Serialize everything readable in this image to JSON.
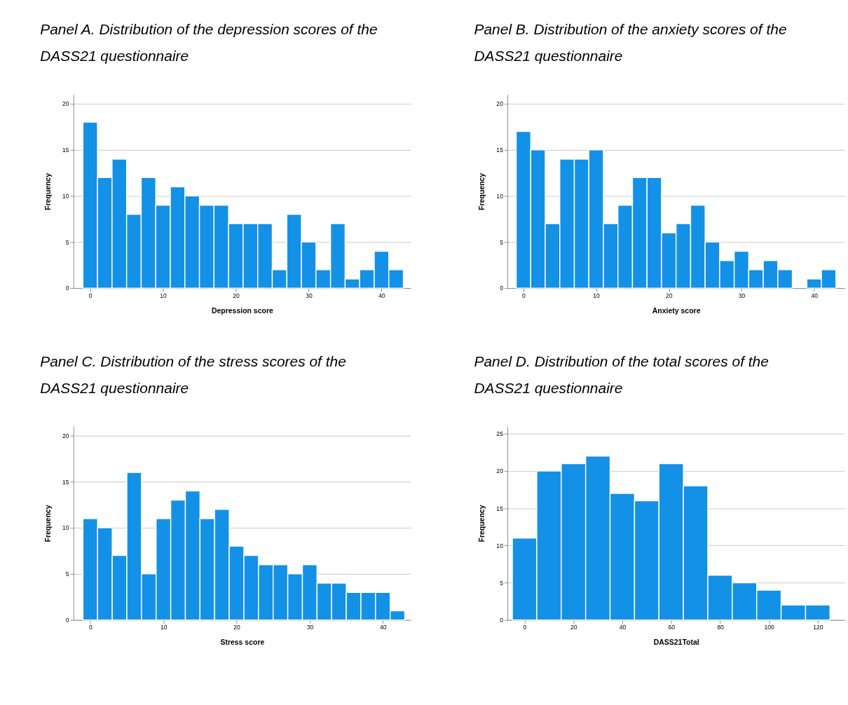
{
  "chart_data": [
    {
      "type": "histogram",
      "title": "Panel A. Distribution of the depression scores of the DASS21 questionnaire",
      "xlabel": "Depression score",
      "ylabel": "Frequency",
      "color": "#1391e6",
      "bins": [
        -1,
        1,
        3,
        5,
        7,
        9,
        11,
        13,
        15,
        17,
        19,
        21,
        23,
        25,
        27,
        29,
        31,
        33,
        35,
        37,
        39,
        41,
        43
      ],
      "values": [
        18,
        12,
        14,
        8,
        12,
        9,
        11,
        10,
        9,
        9,
        7,
        7,
        7,
        2,
        8,
        5,
        2,
        7,
        1,
        2,
        4,
        2
      ],
      "xlim": [
        -2.3,
        44
      ],
      "ylim": [
        0,
        21
      ],
      "xticks": [
        0,
        10,
        20,
        30,
        40
      ],
      "yticks": [
        0,
        5,
        10,
        15,
        20
      ],
      "grid": "y"
    },
    {
      "type": "histogram",
      "title": "Panel B. Distribution of the anxiety scores of the DASS21 questionnaire",
      "xlabel": "Anxiety score",
      "ylabel": "Frequency",
      "color": "#1391e6",
      "bins": [
        -1,
        1,
        3,
        5,
        7,
        9,
        11,
        13,
        15,
        17,
        19,
        21,
        23,
        25,
        27,
        29,
        31,
        33,
        35,
        37,
        39,
        41,
        43
      ],
      "values": [
        17,
        15,
        7,
        14,
        14,
        15,
        7,
        9,
        12,
        12,
        6,
        7,
        9,
        5,
        3,
        4,
        2,
        3,
        2,
        0,
        1,
        2
      ],
      "xlim": [
        -2.2,
        44.2
      ],
      "ylim": [
        0,
        21
      ],
      "xticks": [
        0,
        10,
        20,
        30,
        40
      ],
      "yticks": [
        0,
        5,
        10,
        15,
        20
      ],
      "grid": "y"
    },
    {
      "type": "histogram",
      "title": "Panel C. Distribution of the stress scores of the DASS21 questionnaire",
      "xlabel": "Stress score",
      "ylabel": "Frequency",
      "color": "#1391e6",
      "bins": [
        -1,
        1,
        3,
        5,
        7,
        9,
        11,
        13,
        15,
        17,
        19,
        21,
        23,
        25,
        27,
        29,
        31,
        33,
        35,
        37,
        39,
        41,
        43
      ],
      "values": [
        11,
        10,
        7,
        16,
        5,
        11,
        13,
        14,
        11,
        12,
        8,
        7,
        6,
        6,
        5,
        6,
        4,
        4,
        3,
        3,
        3,
        1
      ],
      "xlim": [
        -2.3,
        43.8
      ],
      "ylim": [
        0,
        21
      ],
      "xticks": [
        0,
        10,
        20,
        30,
        40
      ],
      "yticks": [
        0,
        5,
        10,
        15,
        20
      ],
      "grid": "y"
    },
    {
      "type": "histogram",
      "title": "Panel D. Distribution of the total scores of the DASS21 questionnaire",
      "xlabel": "DASS21Total",
      "ylabel": "Frequency",
      "color": "#1391e6",
      "bins": [
        -5,
        5,
        15,
        25,
        35,
        45,
        55,
        65,
        75,
        85,
        95,
        105,
        115,
        125
      ],
      "values": [
        11,
        20,
        21,
        22,
        17,
        16,
        21,
        18,
        6,
        5,
        4,
        2,
        2
      ],
      "xlim": [
        -7,
        131
      ],
      "ylim": [
        0,
        26
      ],
      "xticks": [
        0,
        20,
        40,
        60,
        80,
        100,
        120
      ],
      "yticks": [
        0,
        5,
        10,
        15,
        20,
        25
      ],
      "grid": "y"
    }
  ]
}
